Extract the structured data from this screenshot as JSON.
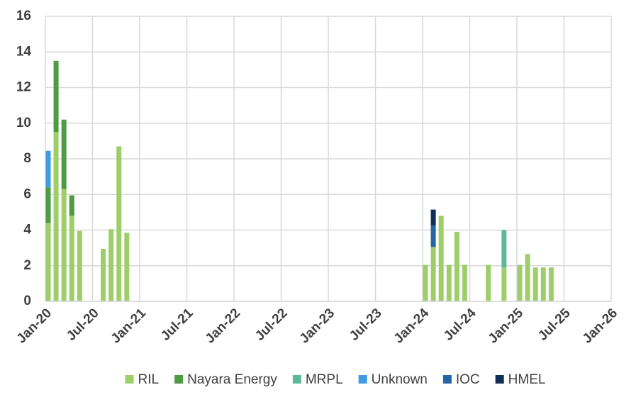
{
  "chart_data": {
    "type": "bar",
    "stacked": true,
    "categories": [
      "Jan-20",
      "Feb-20",
      "Mar-20",
      "Apr-20",
      "May-20",
      "Aug-20",
      "Sep-20",
      "Oct-20",
      "Nov-20",
      "Jan-24",
      "Feb-24",
      "Mar-24",
      "Apr-24",
      "May-24",
      "Jun-24",
      "Sep-24",
      "Nov-24",
      "Jan-25",
      "Feb-25",
      "Mar-25",
      "Apr-25",
      "May-25"
    ],
    "series": [
      {
        "name": "RIL",
        "color": "#9dce6a",
        "values": [
          4.4,
          9.5,
          6.3,
          4.8,
          3.95,
          2.95,
          4.05,
          8.7,
          3.85,
          2.05,
          3.05,
          4.8,
          2.05,
          3.9,
          2.05,
          2.05,
          1.9,
          2.05,
          2.65,
          1.9,
          1.9,
          1.9
        ]
      },
      {
        "name": "Nayara Energy",
        "color": "#4e9a45",
        "values": [
          2,
          4,
          3.9,
          1.15,
          null,
          null,
          null,
          null,
          null,
          null,
          null,
          null,
          null,
          null,
          null,
          null,
          null,
          null,
          null,
          null,
          null,
          null
        ]
      },
      {
        "name": "MRPL",
        "color": "#5fb89c",
        "values": [
          null,
          null,
          null,
          null,
          null,
          null,
          null,
          null,
          null,
          null,
          null,
          null,
          null,
          null,
          null,
          null,
          2.1,
          null,
          null,
          null,
          null,
          null
        ]
      },
      {
        "name": "Unknown",
        "color": "#3f9ce0",
        "values": [
          2.05,
          null,
          null,
          null,
          null,
          null,
          null,
          null,
          null,
          null,
          null,
          null,
          null,
          null,
          null,
          null,
          null,
          null,
          null,
          null,
          null,
          null
        ]
      },
      {
        "name": "IOC",
        "color": "#2465a3",
        "values": [
          null,
          null,
          null,
          null,
          null,
          null,
          null,
          null,
          null,
          null,
          1.2,
          null,
          null,
          null,
          null,
          null,
          null,
          null,
          null,
          null,
          null,
          null
        ]
      },
      {
        "name": "HMEL",
        "color": "#0f2f57",
        "values": [
          null,
          null,
          null,
          null,
          null,
          null,
          null,
          null,
          null,
          null,
          0.9,
          null,
          null,
          null,
          null,
          null,
          null,
          null,
          null,
          null,
          null,
          null
        ]
      }
    ],
    "xlim": [
      "Jan-20",
      "Jan-26"
    ],
    "xticks": [
      "Jan-20",
      "Jul-20",
      "Jan-21",
      "Jul-21",
      "Jan-22",
      "Jul-22",
      "Jan-23",
      "Jul-23",
      "Jan-24",
      "Jul-24",
      "Jan-25",
      "Jul-25",
      "Jan-26"
    ],
    "ylim": [
      0,
      16
    ],
    "yticks": [
      0,
      2,
      4,
      6,
      8,
      10,
      12,
      14,
      16
    ],
    "grid": true,
    "legend": "bottom"
  }
}
